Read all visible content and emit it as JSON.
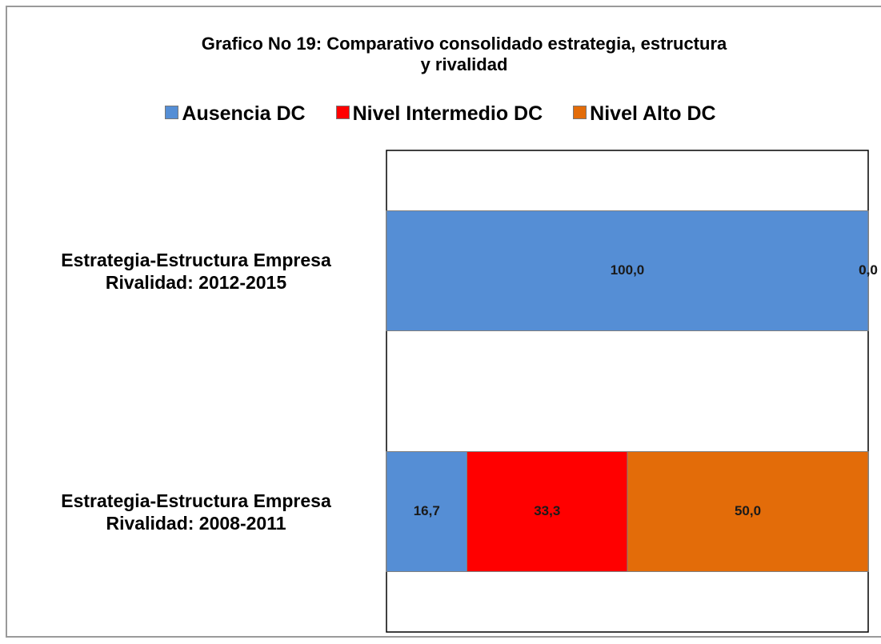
{
  "chart_data": {
    "type": "stacked_bar_horizontal",
    "title": "Grafico No 19: Comparativo consolidado estrategia, estructura y rivalidad",
    "categories": [
      "Estrategia-Estructura Empresa Rivalidad: 2012-2015",
      "Estrategia-Estructura Empresa Rivalidad: 2008-2011"
    ],
    "series": [
      {
        "name": "Ausencia DC",
        "color": "#558ed5",
        "values": [
          100.0,
          16.7
        ],
        "value_labels": [
          "100,0",
          "16,7"
        ]
      },
      {
        "name": "Nivel Intermedio DC",
        "color": "#ff0000",
        "values": [
          0.0,
          33.3
        ],
        "value_labels": [
          "0,0",
          "33,3"
        ]
      },
      {
        "name": "Nivel Alto DC",
        "color": "#e36c09",
        "values": [
          0.0,
          50.0
        ],
        "value_labels": [
          "0,0",
          "50,0"
        ]
      }
    ],
    "xlim": [
      0,
      100
    ],
    "legend": "top"
  }
}
